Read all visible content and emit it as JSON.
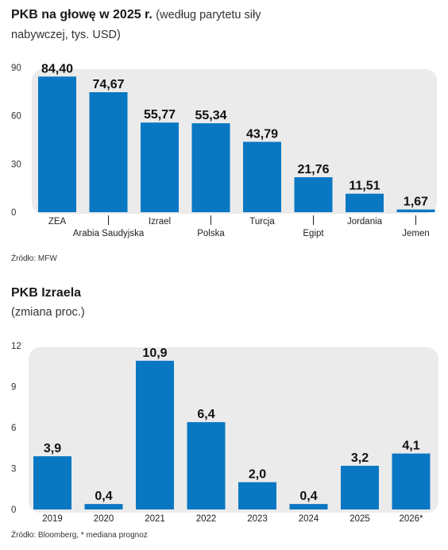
{
  "colors": {
    "bar": "#0a77c3",
    "panel": "#ebebeb"
  },
  "chart_data": [
    {
      "type": "bar",
      "title": "PKB na głowę w 2025 r.",
      "subtitle_inline": "(według parytetu siły",
      "subtitle_line2": "nabywczej, tys. USD)",
      "categories": [
        "ZEA",
        "Arabia Saudyjska",
        "Izrael",
        "Polska",
        "Turcja",
        "Egipt",
        "Jordania",
        "Jemen"
      ],
      "values": [
        84.4,
        74.67,
        55.77,
        55.34,
        43.79,
        21.76,
        11.51,
        1.67
      ],
      "value_labels": [
        "84,40",
        "74,67",
        "55,77",
        "55,34",
        "43,79",
        "21,76",
        "11,51",
        "1,67"
      ],
      "yticks": [
        "90",
        "60",
        "30",
        "0"
      ],
      "ytick_values": [
        90,
        60,
        30,
        0
      ],
      "ylim": [
        0,
        90
      ],
      "grid": false,
      "source": "Źródło: MFW"
    },
    {
      "type": "bar",
      "title": "PKB Izraela",
      "subtitle": "(zmiana proc.)",
      "categories": [
        "2019",
        "2020",
        "2021",
        "2022",
        "2023",
        "2024",
        "2025",
        "2026*"
      ],
      "values": [
        3.9,
        0.4,
        10.9,
        6.4,
        2.0,
        0.4,
        3.2,
        4.1
      ],
      "value_labels": [
        "3,9",
        "0,4",
        "10,9",
        "6,4",
        "2,0",
        "0,4",
        "3,2",
        "4,1"
      ],
      "yticks": [
        "12",
        "9",
        "6",
        "3",
        "0"
      ],
      "ytick_values": [
        12,
        9,
        6,
        3,
        0
      ],
      "ylim": [
        0,
        12
      ],
      "grid": false,
      "source": "Źródło: Bloomberg, * mediana prognoz"
    }
  ]
}
